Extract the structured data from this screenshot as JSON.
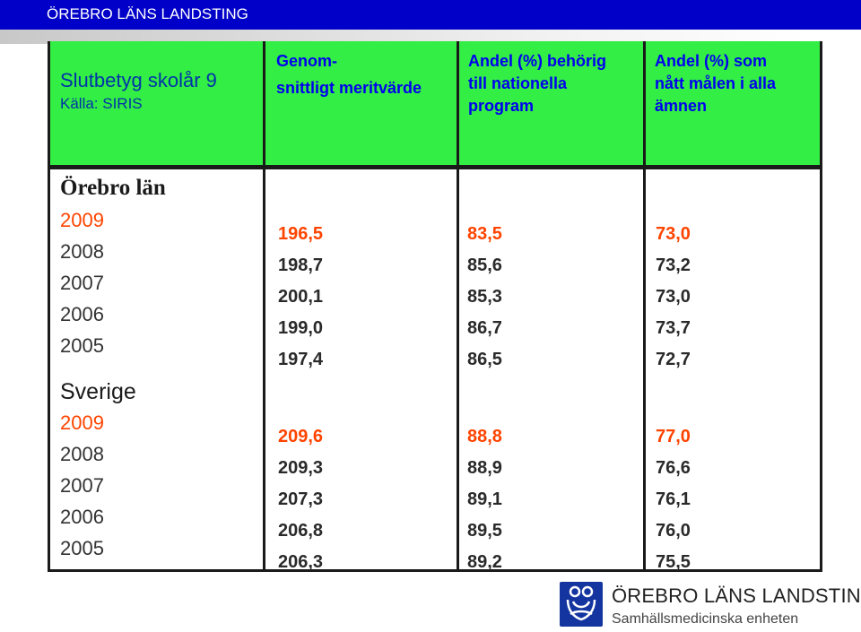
{
  "banner": {
    "title": "ÖREBRO LÄNS LANDSTING"
  },
  "header": {
    "title": "Slutbetyg skolår 9",
    "source": "Källa: SIRIS",
    "col1": [
      "Genom-",
      "snittligt meritvärde"
    ],
    "col2": [
      "Andel (%) behörig",
      "till nationella",
      "program"
    ],
    "col3": [
      "Andel (%) som",
      "nått målen i alla",
      "ämnen"
    ]
  },
  "colors": {
    "header_bg": "#33ee44",
    "highlight": "#ff4400",
    "banner_bg": "#0000c8",
    "header_text": "#0000ee"
  },
  "sections": [
    {
      "region": "Örebro län",
      "years": [
        "2009",
        "2008",
        "2007",
        "2006",
        "2005"
      ],
      "meritvarde": [
        "196,5",
        "198,7",
        "200,1",
        "199,0",
        "197,4"
      ],
      "behorig": [
        "83,5",
        "85,6",
        "85,3",
        "86,7",
        "86,5"
      ],
      "malen": [
        "73,0",
        "73,2",
        "73,0",
        "73,7",
        "72,7"
      ]
    },
    {
      "region": "Sverige",
      "years": [
        "2009",
        "2008",
        "2007",
        "2006",
        "2005"
      ],
      "meritvarde": [
        "209,6",
        "209,3",
        "207,3",
        "206,8",
        "206,3"
      ],
      "behorig": [
        "88,8",
        "88,9",
        "89,1",
        "89,5",
        "89,2"
      ],
      "malen": [
        "77,0",
        "76,6",
        "76,1",
        "76,0",
        "75,5"
      ]
    }
  ],
  "footer": {
    "logo_icon": "landsting-logo-icon",
    "name": "ÖREBRO LÄNS LANDSTING",
    "unit": "Samhällsmedicinska enheten"
  }
}
